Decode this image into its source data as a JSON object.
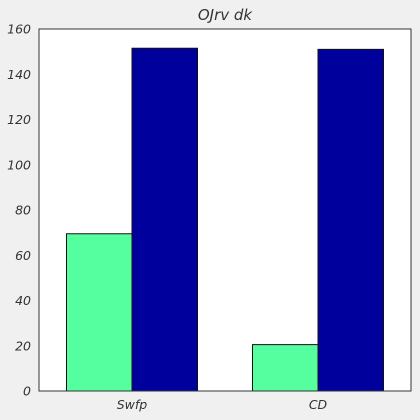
{
  "chart_data": {
    "type": "bar",
    "title": "OJrv dk",
    "xlabel": "",
    "ylabel": "",
    "categories": [
      "Swfp",
      "CD"
    ],
    "series": [
      {
        "values": [
          69.5,
          20.5
        ],
        "color": "#55ff9f"
      },
      {
        "values": [
          151.5,
          151
        ],
        "color": "#00009c"
      }
    ],
    "ylim": [
      0,
      160
    ],
    "yticks": [
      "0",
      "20",
      "40",
      "60",
      "80",
      "100",
      "120",
      "140",
      "160"
    ],
    "grid": false,
    "legend": "none",
    "colors": {
      "background": "#f0f0f0",
      "plot_background": "#ffffff",
      "axis": "#333333",
      "bar_edge": "#111111"
    }
  }
}
